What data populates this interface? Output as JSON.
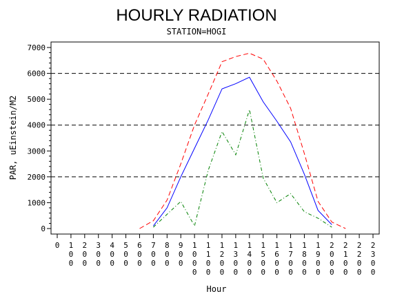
{
  "chart_data": {
    "type": "line",
    "title": "HOURLY RADIATION",
    "subtitle": "STATION=HOGI",
    "xlabel": "Hour",
    "ylabel": "PAR, uEinstein/M2",
    "xlim": [
      0,
      2300
    ],
    "ylim": [
      0,
      7000
    ],
    "x_ticks": [
      "0",
      "100",
      "200",
      "300",
      "400",
      "500",
      "600",
      "700",
      "800",
      "900",
      "1000",
      "1100",
      "1200",
      "1300",
      "1400",
      "1500",
      "1600",
      "1700",
      "1800",
      "1900",
      "2000",
      "2100",
      "2200",
      "2300"
    ],
    "y_ticks": [
      "0",
      "1000",
      "2000",
      "3000",
      "4000",
      "5000",
      "6000",
      "7000"
    ],
    "reference_lines": [
      2000,
      4000,
      6000
    ],
    "series": [
      {
        "style": "dashed",
        "color": "#ff0000",
        "x": [
          600,
          700,
          800,
          900,
          1000,
          1100,
          1200,
          1300,
          1400,
          1500,
          1600,
          1700,
          1800,
          1900,
          2000,
          2100
        ],
        "values": [
          0,
          300,
          1100,
          2500,
          4000,
          5200,
          6450,
          6650,
          6780,
          6550,
          5700,
          4650,
          2900,
          1050,
          250,
          0
        ]
      },
      {
        "style": "solid",
        "color": "#0000ff",
        "x": [
          700,
          800,
          900,
          1000,
          1100,
          1200,
          1300,
          1400,
          1500,
          1600,
          1700,
          1800,
          1900,
          2000
        ],
        "values": [
          100,
          800,
          2000,
          3100,
          4200,
          5400,
          5600,
          5850,
          4900,
          4150,
          3350,
          2100,
          700,
          150
        ]
      },
      {
        "style": "dash-dot",
        "color": "#008000",
        "x": [
          700,
          800,
          900,
          1000,
          1100,
          1200,
          1300,
          1400,
          1500,
          1600,
          1700,
          1800,
          1900,
          2000
        ],
        "values": [
          50,
          550,
          1050,
          100,
          2250,
          3750,
          2850,
          4600,
          1950,
          1000,
          1350,
          650,
          400,
          50
        ]
      }
    ]
  }
}
